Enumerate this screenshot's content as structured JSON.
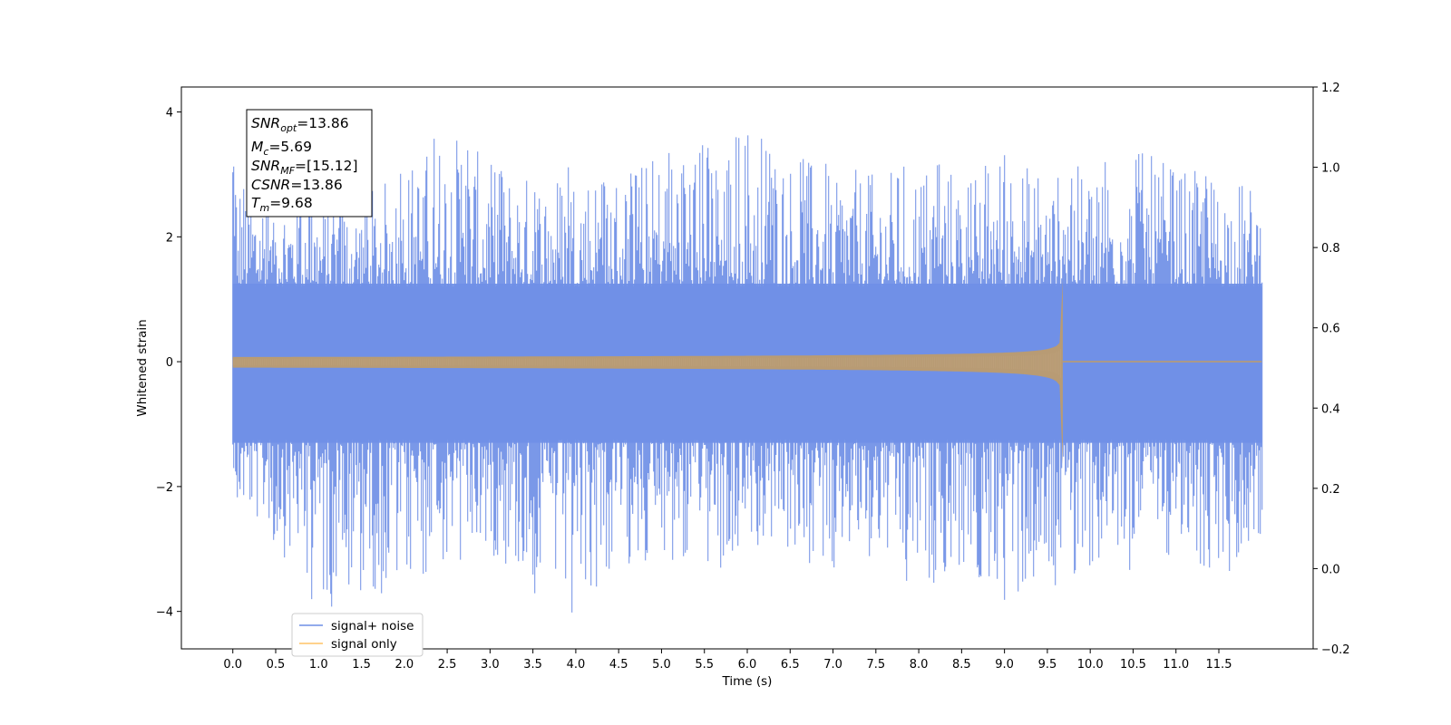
{
  "chart_data": {
    "type": "line",
    "xlabel": "Time (s)",
    "ylabel": "Whitened strain",
    "xlim": [
      -0.6,
      12.6
    ],
    "ylim": [
      -4.6,
      4.4
    ],
    "y2lim": [
      -0.2,
      1.2
    ],
    "x_ticks": [
      0.0,
      0.5,
      1.0,
      1.5,
      2.0,
      2.5,
      3.0,
      3.5,
      4.0,
      4.5,
      5.0,
      5.5,
      6.0,
      6.5,
      7.0,
      7.5,
      8.0,
      8.5,
      9.0,
      9.5,
      10.0,
      10.5,
      11.0,
      11.5
    ],
    "x_tick_labels": [
      "0.0",
      "0.5",
      "1.0",
      "1.5",
      "2.0",
      "2.5",
      "3.0",
      "3.5",
      "4.0",
      "4.5",
      "5.0",
      "5.5",
      "6.0",
      "6.5",
      "7.0",
      "7.5",
      "8.0",
      "8.5",
      "9.0",
      "9.5",
      "10.0",
      "10.5",
      "11.0",
      "11.5"
    ],
    "y_ticks": [
      4,
      2,
      0,
      -2,
      -4
    ],
    "y_tick_labels": [
      "4",
      "2",
      "0",
      "−2",
      "−4"
    ],
    "y2_ticks": [
      1.2,
      1.0,
      0.8,
      0.6,
      0.4,
      0.2,
      0.0,
      -0.2
    ],
    "y2_tick_labels": [
      "1.2",
      "1.0",
      "0.8",
      "0.6",
      "0.4",
      "0.2",
      "0.0",
      "−0.2"
    ],
    "series": [
      {
        "name": "signal+ noise",
        "color": "#6f8fe6",
        "x_range": [
          0.0,
          12.0
        ],
        "envelope_x": [
          0.0,
          0.5,
          1.0,
          1.5,
          2.0,
          2.5,
          3.0,
          3.5,
          4.0,
          4.5,
          5.0,
          5.5,
          6.0,
          6.5,
          7.0,
          7.5,
          8.0,
          8.5,
          9.0,
          9.5,
          10.0,
          10.5,
          11.0,
          11.5,
          12.0
        ],
        "envelope_upper": [
          3.15,
          2.9,
          2.6,
          2.7,
          3.1,
          3.8,
          3.2,
          3.0,
          3.2,
          3.1,
          3.4,
          3.55,
          3.95,
          3.3,
          3.2,
          3.0,
          3.25,
          3.1,
          3.4,
          3.0,
          3.2,
          3.45,
          3.1,
          3.0,
          2.8
        ],
        "envelope_lower": [
          -2.3,
          -2.9,
          -4.1,
          -3.7,
          -3.8,
          -3.3,
          -3.1,
          -3.7,
          -4.2,
          -3.2,
          -3.4,
          -3.5,
          -3.0,
          -3.2,
          -3.3,
          -3.2,
          -3.7,
          -3.4,
          -3.9,
          -3.7,
          -3.3,
          -3.4,
          -3.3,
          -3.6,
          -2.8
        ]
      },
      {
        "name": "signal only",
        "color": "#ffc466",
        "x_range": [
          0.0,
          12.0
        ],
        "merger_time": 9.68,
        "peak_upper": 1.3,
        "peak_lower": -1.65
      }
    ],
    "legend": {
      "location": "lower-left"
    },
    "annotation_lines": [
      {
        "label": "SNR",
        "sub": "opt",
        "value": "=13.86"
      },
      {
        "label": "M",
        "sub": "c",
        "value": "=5.69"
      },
      {
        "label": "SNR",
        "sub": "MF",
        "value": "=[15.12]"
      },
      {
        "label": "CSNR",
        "sub": "",
        "value": "=13.86"
      },
      {
        "label": "T",
        "sub": "m",
        "value": "=9.68"
      }
    ]
  }
}
